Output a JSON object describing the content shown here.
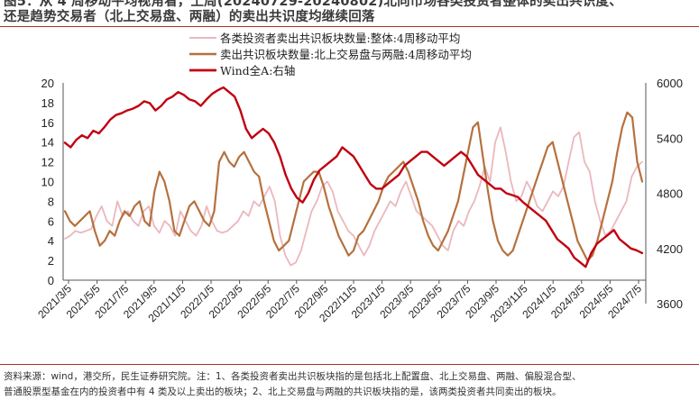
{
  "title": {
    "line1": "图5：从 4 周移动平均视角看，上周(20240729-20240802)北向市场各类投资者整体的卖出共识度、",
    "line2": "还是趋势交易者（北上交易盘、两融）的卖出共识度均继续回落"
  },
  "footer": {
    "line1": "资料来源：wind，港交所，民生证券研究院。注：1、各类投资者卖出共识板块指的是包括北上配置盘、北上交易盘、两融、偏股混合型、",
    "line2": "普通股票型基金在内的投资者中有 4 类及以上卖出的板块；2、北上交易盘与两融的共识板块指的是，该两类投资者共同卖出的板块。"
  },
  "colors": {
    "series1": "#ebb7bd",
    "series2": "#b5713e",
    "series3": "#c0000f",
    "rule": "#a6342a"
  },
  "chart_data": {
    "type": "line",
    "legend_position": "top-left",
    "grid": false,
    "x_start": "2021/3/5",
    "x_end": "2024/8/2",
    "x_tick_labels": [
      "2021/3/5",
      "2021/5/5",
      "2021/7/5",
      "2021/9/5",
      "2021/11/5",
      "2022/1/5",
      "2022/3/5",
      "2022/5/5",
      "2022/7/5",
      "2022/9/5",
      "2022/11/5",
      "2023/1/5",
      "2023/3/5",
      "2023/5/5",
      "2023/7/5",
      "2023/9/5",
      "2023/11/5",
      "2024/1/5",
      "2024/3/5",
      "2024/5/5",
      "2024/7/5"
    ],
    "y_left": {
      "min": 0,
      "max": 20,
      "ticks": [
        0,
        2,
        4,
        6,
        8,
        10,
        12,
        14,
        16,
        18,
        20
      ]
    },
    "y_right": {
      "min": 3600,
      "max": 6000,
      "ticks": [
        3600,
        4200,
        4800,
        5400,
        6000
      ]
    },
    "series": [
      {
        "name": "各类投资者卖出共识板块数量:整体:4周移动平均",
        "axis": "left",
        "values": [
          4.2,
          4.5,
          5.0,
          4.8,
          5.0,
          5.2,
          6.5,
          7.5,
          6.0,
          5.5,
          8.0,
          6.5,
          7.0,
          6.0,
          5.5,
          7.0,
          7.5,
          5.5,
          4.8,
          6.0,
          5.5,
          4.5,
          7.0,
          6.0,
          5.0,
          4.5,
          5.5,
          7.5,
          6.0,
          5.0,
          4.8,
          5.0,
          5.5,
          6.0,
          7.0,
          6.5,
          8.0,
          7.5,
          8.5,
          9.5,
          8.0,
          4.5,
          2.5,
          1.5,
          1.8,
          3.0,
          5.0,
          7.0,
          8.0,
          9.5,
          10.0,
          9.0,
          7.0,
          6.0,
          5.0,
          4.5,
          3.5,
          2.5,
          3.5,
          5.0,
          6.0,
          7.0,
          8.0,
          7.5,
          9.0,
          10.0,
          8.5,
          7.0,
          6.5,
          6.0,
          5.5,
          4.5,
          3.5,
          3.0,
          5.0,
          6.0,
          5.5,
          7.0,
          8.0,
          9.5,
          11.5,
          10.0,
          14.0,
          15.5,
          13.0,
          10.0,
          8.0,
          8.5,
          10.0,
          9.0,
          7.5,
          7.0,
          8.0,
          9.0,
          8.5,
          9.5,
          12.0,
          14.5,
          15.0,
          12.0,
          11.0,
          8.0,
          6.0,
          4.5,
          5.0,
          6.0,
          7.0,
          8.0,
          10.5,
          11.5,
          12.0
        ]
      },
      {
        "name": "卖出共识板块数量:北上交易盘与两融:4周移动平均",
        "axis": "left",
        "values": [
          7.0,
          6.0,
          5.5,
          6.0,
          6.5,
          7.0,
          5.0,
          3.5,
          4.0,
          5.0,
          4.5,
          6.0,
          7.0,
          6.5,
          7.5,
          8.0,
          6.0,
          5.5,
          9.0,
          11.0,
          10.0,
          8.0,
          5.0,
          4.5,
          6.0,
          7.5,
          8.0,
          7.0,
          6.0,
          5.5,
          7.0,
          12.0,
          13.0,
          12.0,
          11.5,
          12.5,
          13.0,
          12.0,
          11.0,
          10.5,
          8.0,
          6.0,
          4.0,
          3.0,
          3.5,
          4.0,
          6.0,
          8.0,
          10.0,
          10.5,
          11.0,
          11.0,
          9.5,
          7.5,
          6.0,
          4.5,
          3.5,
          2.5,
          3.0,
          4.5,
          5.0,
          6.0,
          7.0,
          8.0,
          9.5,
          10.5,
          11.0,
          11.5,
          12.0,
          11.0,
          9.5,
          8.0,
          6.0,
          4.5,
          3.5,
          3.0,
          4.0,
          5.0,
          6.5,
          8.0,
          10.5,
          13.0,
          15.5,
          16.0,
          12.5,
          9.0,
          6.0,
          4.0,
          3.0,
          2.5,
          3.0,
          4.5,
          6.0,
          7.5,
          9.0,
          10.5,
          12.0,
          13.5,
          14.0,
          12.0,
          10.0,
          8.0,
          6.0,
          4.0,
          3.0,
          2.0,
          2.5,
          4.0,
          6.0,
          8.0,
          10.0,
          13.0,
          15.5,
          17.0,
          16.5,
          12.0,
          10.0
        ]
      },
      {
        "name": "Wind全A:右轴",
        "axis": "right",
        "values": [
          5350,
          5300,
          5380,
          5430,
          5400,
          5480,
          5450,
          5520,
          5600,
          5650,
          5670,
          5700,
          5720,
          5750,
          5800,
          5780,
          5700,
          5750,
          5820,
          5850,
          5900,
          5870,
          5820,
          5800,
          5750,
          5820,
          5880,
          5920,
          5950,
          5900,
          5850,
          5700,
          5500,
          5400,
          5450,
          5500,
          5450,
          5350,
          5200,
          5000,
          4850,
          4750,
          4700,
          4800,
          4950,
          5050,
          5100,
          5150,
          5200,
          5300,
          5250,
          5200,
          5100,
          5000,
          4900,
          4850,
          4850,
          4900,
          4950,
          5000,
          5100,
          5150,
          5200,
          5250,
          5250,
          5200,
          5150,
          5100,
          5150,
          5200,
          5250,
          5200,
          5100,
          5000,
          4950,
          4900,
          4850,
          4850,
          4800,
          4780,
          4760,
          4700,
          4650,
          4600,
          4550,
          4500,
          4400,
          4300,
          4250,
          4200,
          4100,
          4050,
          4000,
          4150,
          4250,
          4300,
          4350,
          4400,
          4300,
          4250,
          4200,
          4180,
          4150
        ]
      }
    ]
  }
}
